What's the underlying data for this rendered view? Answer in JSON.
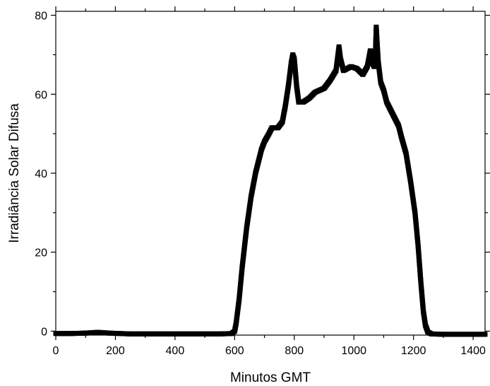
{
  "chart_data": {
    "type": "scatter",
    "xlabel": "Minutos GMT",
    "ylabel": "Irradiância Solar Difusa",
    "xlim": [
      0,
      1440
    ],
    "ylim": [
      -1,
      81
    ],
    "x_major_ticks": [
      0,
      200,
      400,
      600,
      800,
      1000,
      1200,
      1400
    ],
    "x_tick_labels": [
      "0",
      "200",
      "400",
      "600",
      "800",
      "1000",
      "1200",
      "1400"
    ],
    "y_major_ticks": [
      0,
      20,
      40,
      60,
      80
    ],
    "y_tick_labels": [
      "0",
      "20",
      "40",
      "60",
      "80"
    ],
    "grid": false,
    "legend": "none",
    "marker": "square",
    "color": "#000000",
    "series": [
      {
        "points": [
          [
            0,
            -0.6
          ],
          [
            50,
            -0.6
          ],
          [
            100,
            -0.5
          ],
          [
            140,
            -0.3
          ],
          [
            180,
            -0.5
          ],
          [
            250,
            -0.7
          ],
          [
            350,
            -0.7
          ],
          [
            450,
            -0.7
          ],
          [
            550,
            -0.7
          ],
          [
            590,
            -0.6
          ],
          [
            600,
            0
          ],
          [
            605,
            2
          ],
          [
            615,
            8
          ],
          [
            625,
            16
          ],
          [
            640,
            26
          ],
          [
            655,
            34
          ],
          [
            670,
            40
          ],
          [
            690,
            46
          ],
          [
            700,
            48
          ],
          [
            715,
            50
          ],
          [
            725,
            51.5
          ],
          [
            745,
            51.5
          ],
          [
            760,
            53
          ],
          [
            770,
            57
          ],
          [
            780,
            62
          ],
          [
            790,
            68
          ],
          [
            795,
            70
          ],
          [
            800,
            69
          ],
          [
            808,
            62
          ],
          [
            815,
            58
          ],
          [
            830,
            58
          ],
          [
            850,
            59
          ],
          [
            870,
            60.5
          ],
          [
            900,
            61.5
          ],
          [
            920,
            63.5
          ],
          [
            940,
            66
          ],
          [
            950,
            72
          ],
          [
            955,
            69
          ],
          [
            965,
            66
          ],
          [
            990,
            67
          ],
          [
            1010,
            66.5
          ],
          [
            1030,
            65
          ],
          [
            1045,
            67
          ],
          [
            1055,
            71
          ],
          [
            1062,
            68
          ],
          [
            1068,
            67
          ],
          [
            1072,
            70
          ],
          [
            1075,
            77
          ],
          [
            1078,
            73
          ],
          [
            1082,
            68
          ],
          [
            1090,
            63
          ],
          [
            1100,
            61
          ],
          [
            1110,
            58
          ],
          [
            1130,
            55
          ],
          [
            1150,
            52
          ],
          [
            1160,
            49
          ],
          [
            1175,
            45
          ],
          [
            1190,
            38
          ],
          [
            1205,
            30
          ],
          [
            1215,
            22
          ],
          [
            1225,
            12
          ],
          [
            1233,
            5
          ],
          [
            1240,
            1.5
          ],
          [
            1248,
            -0.2
          ],
          [
            1260,
            -0.7
          ],
          [
            1300,
            -0.8
          ],
          [
            1360,
            -0.8
          ],
          [
            1440,
            -0.8
          ]
        ]
      }
    ]
  }
}
